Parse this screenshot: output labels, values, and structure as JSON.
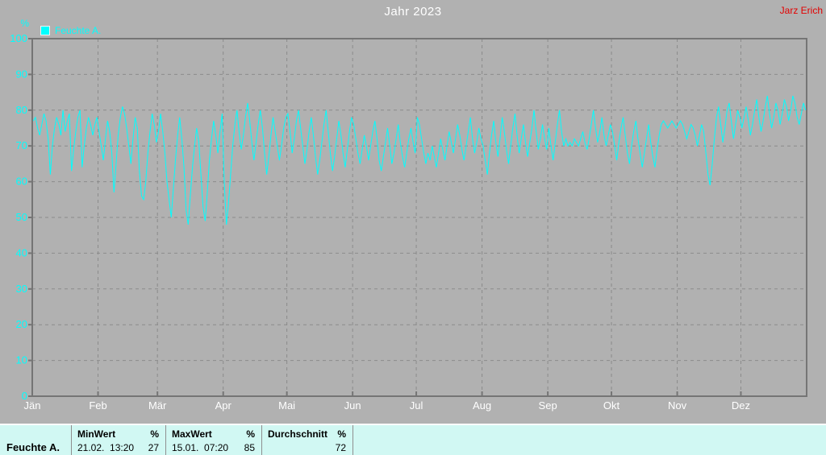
{
  "header": {
    "title": "Jahr 2023",
    "watermark": "Jarz Erich"
  },
  "legend": {
    "label": "Feuchte A.",
    "color": "#00ffff"
  },
  "chart_data": {
    "type": "line",
    "title": "Jahr 2023",
    "series_name": "Feuchte A.",
    "ylabel": "%",
    "ylim": [
      0,
      100
    ],
    "y_ticks": [
      0,
      10,
      20,
      30,
      40,
      50,
      60,
      70,
      80,
      90,
      100
    ],
    "grid": true,
    "legend_position": "top-left",
    "line_color": "#00ffff",
    "months": [
      "Jän",
      "Feb",
      "Mär",
      "Apr",
      "Mai",
      "Jun",
      "Jul",
      "Aug",
      "Sep",
      "Okt",
      "Nov",
      "Dez"
    ],
    "month_days": [
      31,
      28,
      31,
      30,
      31,
      30,
      31,
      31,
      30,
      31,
      30,
      31
    ],
    "x_unit": "day-of-year 2023",
    "values": [
      77,
      78,
      75,
      73,
      76,
      79,
      77,
      72,
      62,
      70,
      75,
      78,
      76,
      73,
      80,
      74,
      77,
      79,
      63,
      69,
      74,
      78,
      80,
      64,
      70,
      75,
      78,
      76,
      73,
      76,
      78,
      74,
      70,
      66,
      72,
      77,
      74,
      68,
      57,
      65,
      73,
      78,
      81,
      79,
      75,
      70,
      65,
      72,
      78,
      75,
      63,
      56,
      55,
      60,
      68,
      74,
      79,
      76,
      71,
      74,
      79,
      74,
      68,
      60,
      55,
      50,
      58,
      66,
      73,
      78,
      72,
      64,
      52,
      48,
      56,
      64,
      70,
      75,
      71,
      62,
      53,
      49,
      57,
      66,
      72,
      77,
      73,
      68,
      74,
      79,
      60,
      48,
      54,
      62,
      70,
      76,
      80,
      74,
      69,
      73,
      78,
      82,
      77,
      71,
      66,
      71,
      76,
      80,
      75,
      68,
      62,
      67,
      73,
      78,
      74,
      70,
      66,
      70,
      75,
      78,
      79,
      74,
      68,
      72,
      77,
      80,
      75,
      70,
      65,
      69,
      74,
      78,
      73,
      67,
      62,
      66,
      71,
      76,
      80,
      74,
      68,
      63,
      67,
      72,
      77,
      73,
      68,
      64,
      69,
      74,
      78,
      76,
      72,
      68,
      65,
      69,
      73,
      70,
      66,
      70,
      74,
      77,
      72,
      66,
      63,
      67,
      71,
      75,
      70,
      65,
      68,
      72,
      76,
      71,
      67,
      64,
      68,
      72,
      75,
      71,
      68,
      78,
      76,
      72,
      68,
      65,
      68,
      66,
      70,
      67,
      64,
      68,
      72,
      69,
      66,
      70,
      74,
      71,
      68,
      72,
      76,
      73,
      69,
      66,
      70,
      74,
      78,
      72,
      68,
      71,
      75,
      72,
      70,
      66,
      62,
      68,
      73,
      77,
      71,
      67,
      72,
      78,
      74,
      69,
      65,
      70,
      75,
      79,
      73,
      68,
      72,
      76,
      71,
      67,
      71,
      75,
      80,
      74,
      69,
      72,
      76,
      72,
      69,
      75,
      70,
      66,
      71,
      76,
      80,
      74,
      70,
      72,
      70,
      71,
      70,
      72,
      71,
      70,
      72,
      74,
      71,
      69,
      72,
      76,
      80,
      75,
      71,
      74,
      78,
      73,
      70,
      73,
      76,
      74,
      70,
      66,
      71,
      75,
      78,
      73,
      68,
      65,
      70,
      74,
      77,
      72,
      68,
      64,
      68,
      72,
      76,
      71,
      67,
      64,
      69,
      73,
      76,
      77,
      76,
      75,
      76,
      77,
      76,
      75,
      76,
      77,
      76,
      74,
      72,
      74,
      76,
      75,
      73,
      70,
      73,
      76,
      74,
      68,
      62,
      59,
      65,
      72,
      78,
      81,
      76,
      71,
      75,
      80,
      82,
      77,
      72,
      76,
      80,
      78,
      75,
      78,
      81,
      77,
      73,
      76,
      80,
      83,
      78,
      74,
      77,
      81,
      84,
      79,
      75,
      78,
      82,
      80,
      76,
      79,
      83,
      81,
      77,
      80,
      84,
      82,
      78,
      76,
      79,
      82,
      80
    ]
  },
  "table": {
    "row_label": "Feuchte A.",
    "columns": [
      {
        "header": "MinWert",
        "unit": "%",
        "value": "21.02.  13:20",
        "number": "27"
      },
      {
        "header": "MaxWert",
        "unit": "%",
        "value": "15.01.  07:20",
        "number": "85"
      },
      {
        "header": "Durchschnitt",
        "unit": "%",
        "value": "",
        "number": "72"
      }
    ]
  }
}
